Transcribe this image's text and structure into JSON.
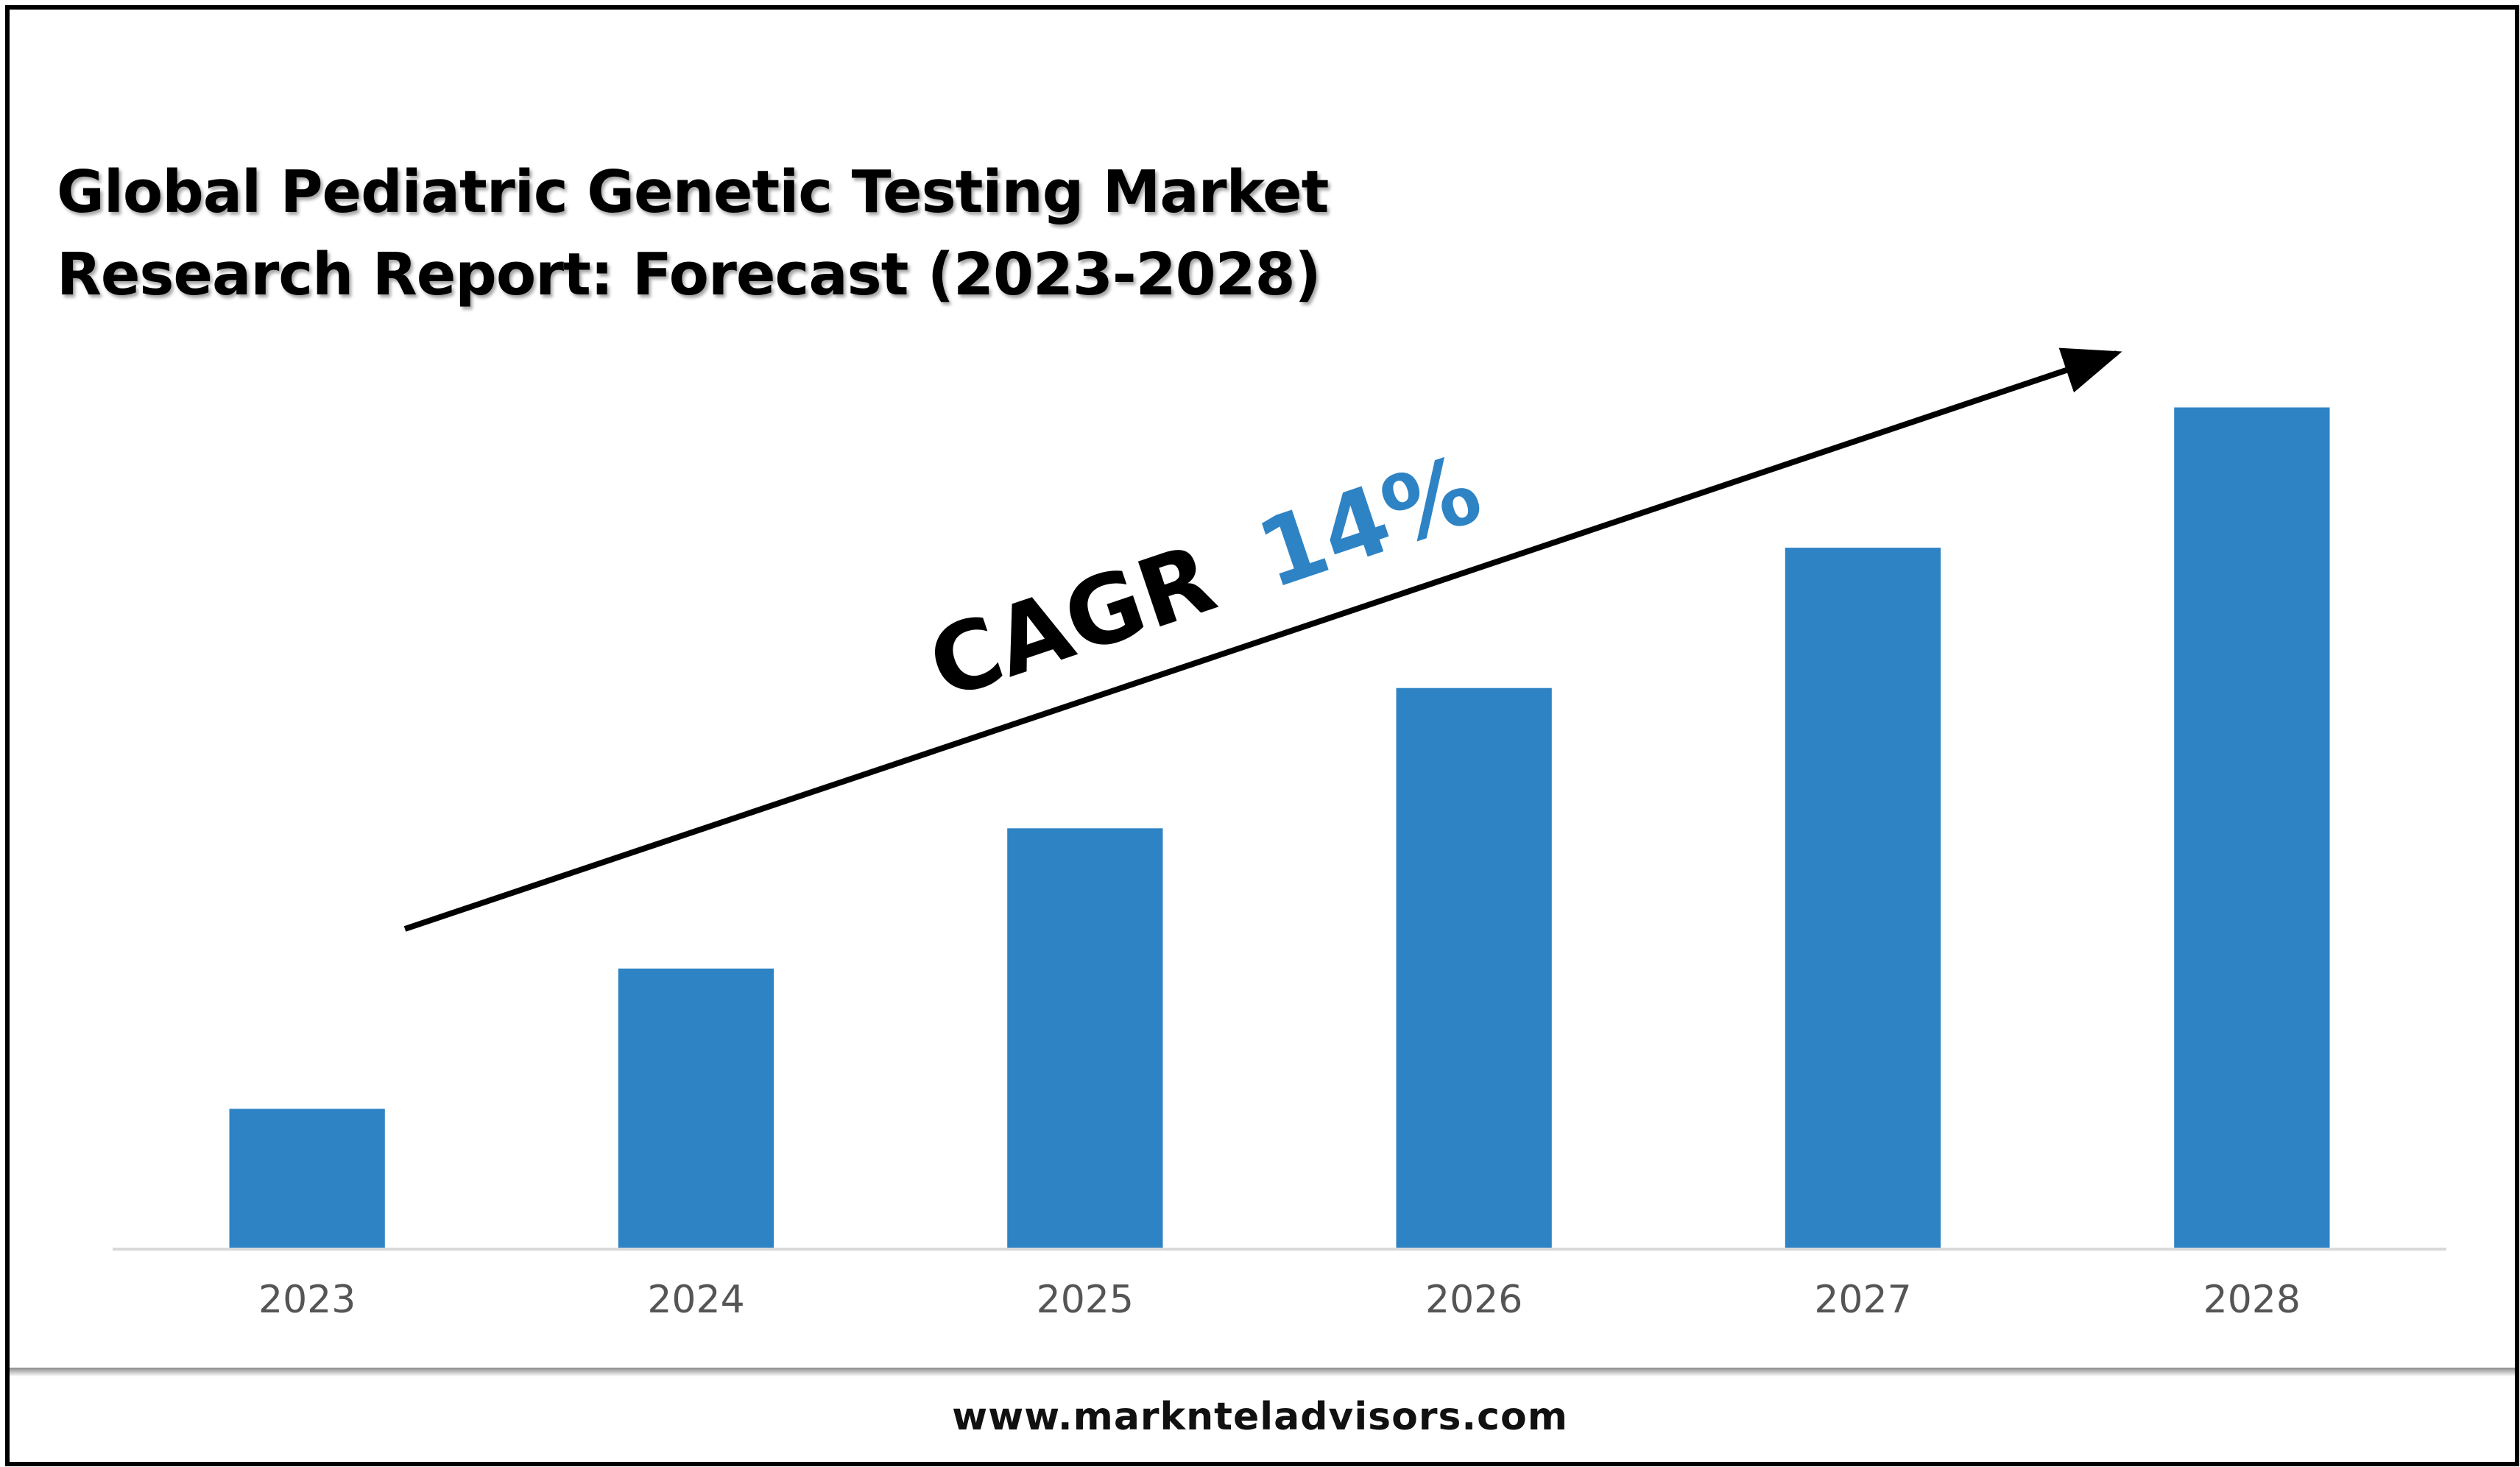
{
  "title_lines": [
    "Global Pediatric Genetic Testing Market",
    "Research Report: Forecast (2023-2028)"
  ],
  "annotation": {
    "prefix": "CAGR",
    "value": "14%",
    "prefix_color": "#000000",
    "value_color": "#2E83C5"
  },
  "footer": {
    "url": "www.marknteladvisors.com"
  },
  "colors": {
    "bar": "#2E83C5",
    "axis": "#d9d9d9",
    "frame": "#000000",
    "arrow": "#000000"
  },
  "chart_data": {
    "type": "bar",
    "title": "Global Pediatric Genetic Testing Market Research Report: Forecast (2023-2028)",
    "xlabel": "",
    "ylabel": "",
    "categories": [
      "2023",
      "2024",
      "2025",
      "2026",
      "2027",
      "2028"
    ],
    "values": [
      1.0,
      2.0,
      3.0,
      4.0,
      5.0,
      6.0
    ],
    "ylim": [
      0,
      6.05
    ],
    "grid": false,
    "legend": "none",
    "y_axis_labels_shown": false
  }
}
